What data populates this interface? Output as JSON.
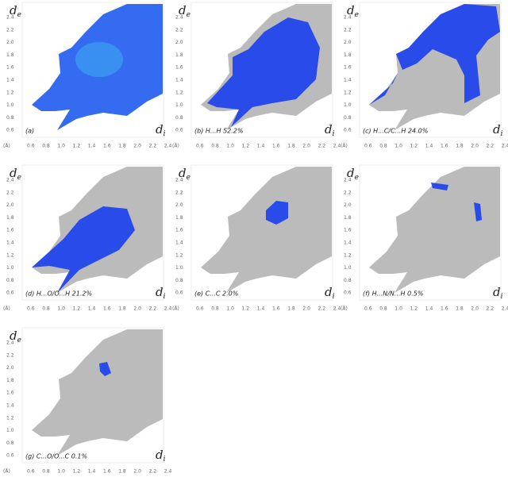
{
  "axis_labels": {
    "y": "d",
    "y_sub": "e",
    "x": "d",
    "x_sub": "i"
  },
  "y_ticks": [
    "2.4",
    "2.2",
    "2.0",
    "1.8",
    "1.6",
    "1.4",
    "1.2",
    "1.0",
    "0.8",
    "0.6"
  ],
  "x_unit": "(Å)",
  "x_ticks": [
    "0.6",
    "0.8",
    "1.0",
    "1.2",
    "1.4",
    "1.6",
    "1.8",
    "2.0",
    "2.2",
    "2.4"
  ],
  "panels": [
    {
      "label": "(a)"
    },
    {
      "label": "(b) H...H 52.2%"
    },
    {
      "label": "(c) H...C/C...H 24.0%"
    },
    {
      "label": "(d) H...O/O...H 21.2%"
    },
    {
      "label": "(e) C...C 2.0%"
    },
    {
      "label": "(f) H...N/N...H 0.5%"
    },
    {
      "label": "(g) C...O/O...C 0.1%"
    }
  ]
}
